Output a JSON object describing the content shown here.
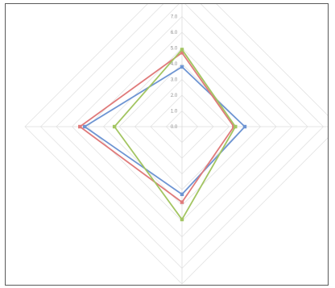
{
  "chart_data": {
    "type": "radar",
    "title": "",
    "axes": [
      "top",
      "right",
      "bottom",
      "left"
    ],
    "scale": {
      "min": 0,
      "max": 7,
      "step": 1,
      "tick_labels": [
        "0.0",
        "1.0",
        "2.0",
        "3.0",
        "4.0",
        "5.0",
        "6.0",
        "7.0"
      ],
      "grid": true
    },
    "legend": "none",
    "series": [
      {
        "color": "#6e95d3",
        "values": [
          3.8,
          4.0,
          4.3,
          6.2
        ]
      },
      {
        "color": "#e07b7b",
        "values": [
          4.7,
          3.3,
          4.8,
          6.5
        ]
      },
      {
        "color": "#a3c562",
        "values": [
          4.9,
          3.4,
          5.9,
          4.3
        ]
      }
    ]
  }
}
